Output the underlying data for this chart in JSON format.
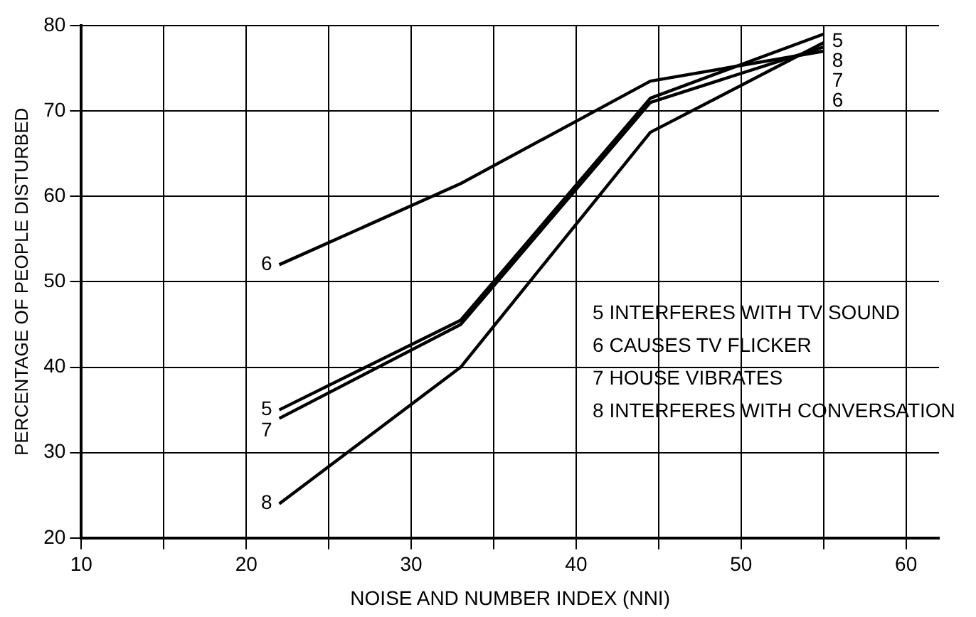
{
  "chart_data": {
    "type": "line",
    "xlabel": "NOISE AND NUMBER INDEX (NNI)",
    "ylabel": "PERCENTAGE OF PEOPLE DISTURBED",
    "x": [
      22,
      33,
      44.5,
      55
    ],
    "series": [
      {
        "name": "5",
        "color": "#000000",
        "values": [
          35,
          45.5,
          71.5,
          79
        ]
      },
      {
        "name": "6",
        "color": "#000000",
        "values": [
          52,
          61.5,
          73.5,
          77
        ]
      },
      {
        "name": "7",
        "color": "#000000",
        "values": [
          34,
          45,
          71,
          77.5
        ]
      },
      {
        "name": "8",
        "color": "#000000",
        "values": [
          24,
          40,
          67.5,
          78
        ]
      }
    ],
    "xlim": [
      10,
      62
    ],
    "xticks": [
      10,
      {
        "value": 15,
        "label": null
      },
      20,
      {
        "value": 25,
        "label": null
      },
      30,
      {
        "value": 35,
        "label": null
      },
      40,
      {
        "value": 45,
        "label": null
      },
      50,
      {
        "value": 55,
        "label": null
      },
      60
    ],
    "ylim": [
      20,
      80
    ],
    "yticks": [
      20,
      30,
      40,
      50,
      60,
      70,
      80
    ],
    "grid": true,
    "marker": "none",
    "line_style": "solid",
    "legend": false,
    "annotations": [
      "5 INTERFERES WITH TV SOUND",
      "6 CAUSES TV FLICKER",
      "7 HOUSE VIBRATES",
      "8 INTERFERES WITH CONVERSATION"
    ]
  }
}
